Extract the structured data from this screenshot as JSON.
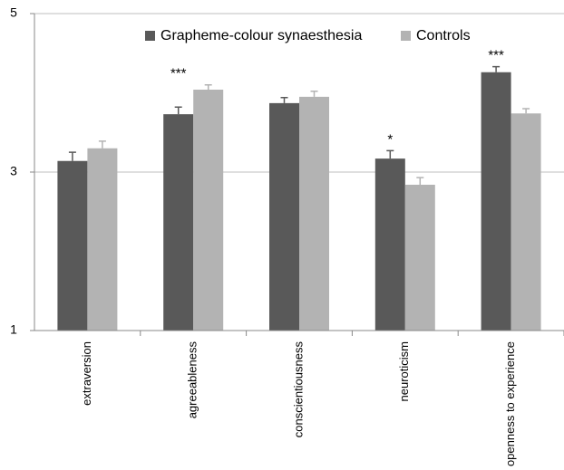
{
  "chart_data": {
    "type": "bar",
    "categories": [
      "extraversion",
      "agreeableness",
      "conscientiousness",
      "neuroticism",
      "openness to experience"
    ],
    "series": [
      {
        "name": "Grapheme-colour synaesthesia",
        "color": "#595959",
        "values": [
          3.14,
          3.73,
          3.87,
          3.17,
          4.26
        ],
        "errors": [
          0.11,
          0.09,
          0.07,
          0.1,
          0.07
        ]
      },
      {
        "name": "Controls",
        "color": "#b3b3b3",
        "values": [
          3.3,
          4.04,
          3.95,
          2.84,
          3.74
        ],
        "errors": [
          0.09,
          0.06,
          0.07,
          0.09,
          0.06
        ]
      }
    ],
    "ylim": [
      1,
      5
    ],
    "yticks": [
      1,
      3,
      5
    ],
    "grid": true,
    "annotations": [
      {
        "category": "agreeableness",
        "text": "***"
      },
      {
        "category": "neuroticism",
        "text": "*"
      },
      {
        "category": "openness to experience",
        "text": "***"
      }
    ]
  }
}
